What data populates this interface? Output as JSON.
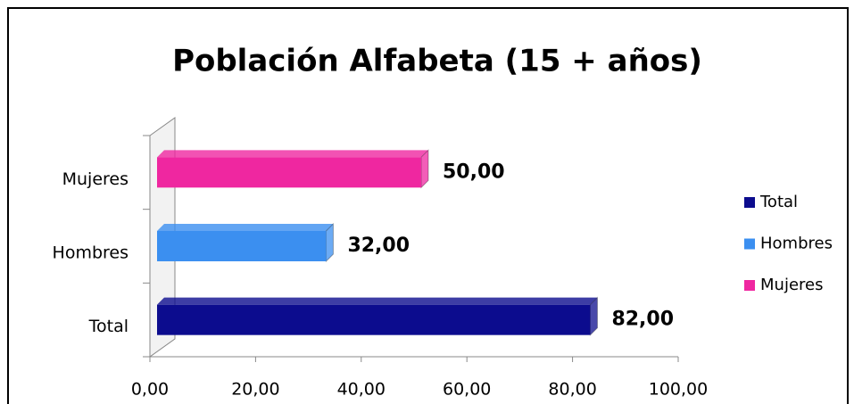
{
  "chart_data": {
    "type": "hbar3d",
    "title": "Población Alfabeta (15 + años)",
    "categories": [
      "Total",
      "Hombres",
      "Mujeres"
    ],
    "values": [
      82,
      32,
      50
    ],
    "value_labels": [
      "82,00",
      "32,00",
      "50,00"
    ],
    "colors": [
      "#0c0c8e",
      "#3b8ff0",
      "#ef27a0"
    ],
    "xlim": [
      0,
      100
    ],
    "xticks": [
      {
        "value": 0,
        "label": "0,00"
      },
      {
        "value": 20,
        "label": "20,00"
      },
      {
        "value": 40,
        "label": "40,00"
      },
      {
        "value": 60,
        "label": "60,00"
      },
      {
        "value": 80,
        "label": "80,00"
      },
      {
        "value": 100,
        "label": "100,00"
      }
    ],
    "legend": "right"
  }
}
